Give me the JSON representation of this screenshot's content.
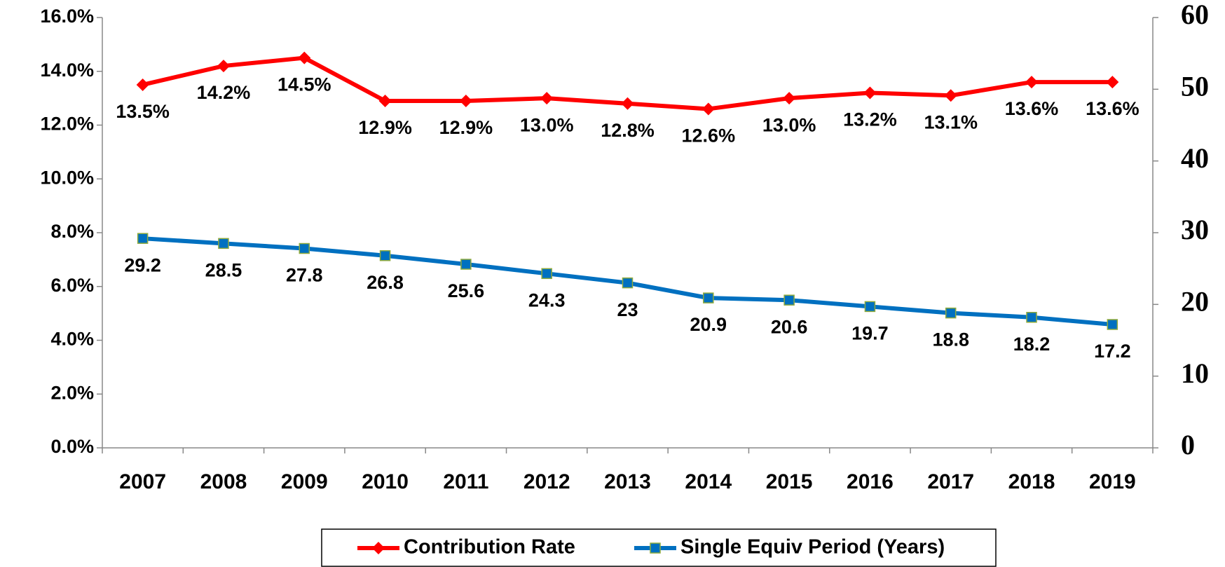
{
  "chart_data": {
    "type": "line",
    "categories": [
      "2007",
      "2008",
      "2009",
      "2010",
      "2011",
      "2012",
      "2013",
      "2014",
      "2015",
      "2016",
      "2017",
      "2018",
      "2019"
    ],
    "series": [
      {
        "name": "Contribution Rate",
        "color": "#ff0000",
        "values": [
          13.5,
          14.2,
          14.5,
          12.9,
          12.9,
          13.0,
          12.8,
          12.6,
          13.0,
          13.2,
          13.1,
          13.6,
          13.6
        ],
        "value_labels": [
          "13.5%",
          "14.2%",
          "14.5%",
          "12.9%",
          "12.9%",
          "13.0%",
          "12.8%",
          "12.6%",
          "13.0%",
          "13.2%",
          "13.1%",
          "13.6%",
          "13.6%"
        ]
      },
      {
        "name": "Single Equiv Period (Years)",
        "color": "#0070c0",
        "axis": "y2",
        "values": [
          29.2,
          28.5,
          27.8,
          26.8,
          25.6,
          24.3,
          23.0,
          20.9,
          20.6,
          19.7,
          18.8,
          18.2,
          17.2
        ]
      }
    ],
    "ylim": [
      0,
      16
    ],
    "yticks": [
      {
        "value": 0,
        "label": "0.0%"
      },
      {
        "value": 2,
        "label": "2.0%"
      },
      {
        "value": 4,
        "label": "4.0%"
      },
      {
        "value": 6,
        "label": "6.0%"
      },
      {
        "value": 8,
        "label": "8.0%"
      },
      {
        "value": 10,
        "label": "10.0%"
      },
      {
        "value": 12,
        "label": "12.0%"
      },
      {
        "value": 14,
        "label": "14.0%"
      },
      {
        "value": 16,
        "label": "16.0%"
      }
    ],
    "y2lim": [
      0,
      60
    ],
    "y2ticks": [
      0,
      10,
      20,
      30,
      40,
      50,
      60
    ],
    "legend": "bottom"
  }
}
